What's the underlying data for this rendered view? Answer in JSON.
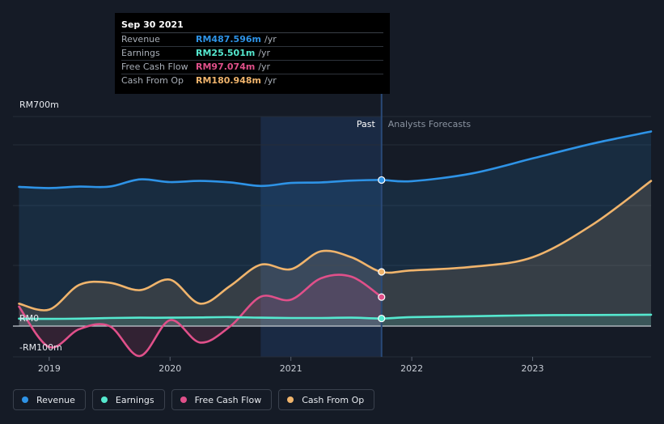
{
  "tooltip": {
    "date": "Sep 30 2021",
    "rows": [
      {
        "label": "Revenue",
        "value": "RM487.596m",
        "unit": "/yr",
        "color": "#2e93e6"
      },
      {
        "label": "Earnings",
        "value": "RM25.501m",
        "unit": "/yr",
        "color": "#55e8cf"
      },
      {
        "label": "Free Cash Flow",
        "value": "RM97.074m",
        "unit": "/yr",
        "color": "#e0508a"
      },
      {
        "label": "Cash From Op",
        "value": "RM180.948m",
        "unit": "/yr",
        "color": "#f0b46c"
      }
    ]
  },
  "regions": {
    "past": "Past",
    "forecast": "Analysts Forecasts"
  },
  "legend": [
    {
      "label": "Revenue",
      "color": "#2e93e6"
    },
    {
      "label": "Earnings",
      "color": "#55e8cf"
    },
    {
      "label": "Free Cash Flow",
      "color": "#e0508a"
    },
    {
      "label": "Cash From Op",
      "color": "#f0b46c"
    }
  ],
  "chart_data": {
    "type": "line",
    "title": "",
    "xlabel": "",
    "ylabel": "",
    "x_ticks": [
      2019,
      2020,
      2021,
      2022,
      2023
    ],
    "y_tick_labels": [
      {
        "value": 700,
        "label": "RM700m"
      },
      {
        "value": 0,
        "label": "RM0"
      },
      {
        "value": -100,
        "label": "-RM100m"
      }
    ],
    "ylim": [
      -100,
      700
    ],
    "xlim": [
      2018.7,
      2023.98
    ],
    "highlight_range": [
      2020.75,
      2021.75
    ],
    "past_end": 2021.75,
    "marker_date": 2021.75,
    "series": [
      {
        "name": "Revenue",
        "color": "#2e93e6",
        "points": [
          [
            2018.75,
            465
          ],
          [
            2019.0,
            461
          ],
          [
            2019.25,
            466
          ],
          [
            2019.5,
            466
          ],
          [
            2019.75,
            490
          ],
          [
            2020.0,
            481
          ],
          [
            2020.25,
            485
          ],
          [
            2020.5,
            480
          ],
          [
            2020.75,
            468
          ],
          [
            2021.0,
            478
          ],
          [
            2021.25,
            480
          ],
          [
            2021.5,
            486
          ],
          [
            2021.75,
            488
          ]
        ],
        "forecast": [
          [
            2021.75,
            488
          ],
          [
            2022.0,
            484
          ],
          [
            2022.5,
            510
          ],
          [
            2023.0,
            560
          ],
          [
            2023.5,
            610
          ],
          [
            2023.98,
            650
          ]
        ]
      },
      {
        "name": "Earnings",
        "color": "#55e8cf",
        "points": [
          [
            2018.75,
            25
          ],
          [
            2019.0,
            24
          ],
          [
            2019.25,
            25
          ],
          [
            2019.5,
            27
          ],
          [
            2019.75,
            28
          ],
          [
            2020.0,
            28
          ],
          [
            2020.25,
            29
          ],
          [
            2020.5,
            30
          ],
          [
            2020.75,
            28
          ],
          [
            2021.0,
            27
          ],
          [
            2021.25,
            27
          ],
          [
            2021.5,
            28
          ],
          [
            2021.75,
            25.5
          ]
        ],
        "forecast": [
          [
            2021.75,
            25.5
          ],
          [
            2022.0,
            30
          ],
          [
            2022.5,
            33
          ],
          [
            2023.0,
            36
          ],
          [
            2023.5,
            37
          ],
          [
            2023.98,
            38
          ]
        ]
      },
      {
        "name": "Free Cash Flow",
        "color": "#e0508a",
        "points": [
          [
            2018.75,
            65
          ],
          [
            2019.0,
            -70
          ],
          [
            2019.25,
            -10
          ],
          [
            2019.5,
            0
          ],
          [
            2019.75,
            -100
          ],
          [
            2020.0,
            20
          ],
          [
            2020.25,
            -55
          ],
          [
            2020.5,
            0
          ],
          [
            2020.75,
            98
          ],
          [
            2021.0,
            88
          ],
          [
            2021.25,
            160
          ],
          [
            2021.5,
            165
          ],
          [
            2021.75,
            97
          ]
        ],
        "forecast": []
      },
      {
        "name": "Cash From Op",
        "color": "#f0b46c",
        "points": [
          [
            2018.75,
            75
          ],
          [
            2019.0,
            55
          ],
          [
            2019.25,
            138
          ],
          [
            2019.5,
            145
          ],
          [
            2019.75,
            120
          ],
          [
            2020.0,
            155
          ],
          [
            2020.25,
            75
          ],
          [
            2020.5,
            135
          ],
          [
            2020.75,
            205
          ],
          [
            2021.0,
            190
          ],
          [
            2021.25,
            250
          ],
          [
            2021.5,
            230
          ],
          [
            2021.75,
            181
          ]
        ],
        "forecast": [
          [
            2021.75,
            181
          ],
          [
            2022.0,
            186
          ],
          [
            2022.5,
            198
          ],
          [
            2023.0,
            230
          ],
          [
            2023.5,
            340
          ],
          [
            2023.98,
            485
          ]
        ]
      }
    ]
  }
}
